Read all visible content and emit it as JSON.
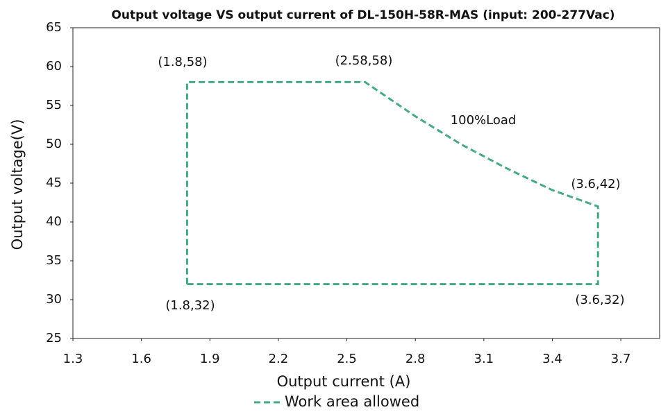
{
  "chart_data": {
    "type": "line",
    "title": "Output voltage VS output current of DL-150H-58R-MAS (input: 200-277Vac)",
    "x_label": "Output current (A)",
    "y_label": "Output voltage(V)",
    "x": [
      1.8,
      1.8,
      2.58,
      2.8,
      3.0,
      3.2,
      3.4,
      3.6,
      3.6,
      1.8
    ],
    "series": [
      {
        "name": "Work area allowed",
        "color": "#46a889",
        "values": [
          32,
          58,
          58,
          53.6,
          50,
          46.9,
          44.1,
          42,
          32,
          32
        ]
      }
    ],
    "xlim": [
      1.3,
      3.87
    ],
    "xticks": [
      1.3,
      1.6,
      1.9,
      2.2,
      2.5,
      2.8,
      3.1,
      3.4,
      3.7
    ],
    "ylim": [
      25,
      65
    ],
    "yticks": [
      25,
      30,
      35,
      40,
      45,
      50,
      55,
      60,
      65
    ],
    "annotations": [
      "(1.8,58)",
      "(2.58,58)",
      "100%Load",
      "(3.6,42)",
      "(1.8,32)",
      "(3.6,32)"
    ],
    "legend": "bottom"
  }
}
